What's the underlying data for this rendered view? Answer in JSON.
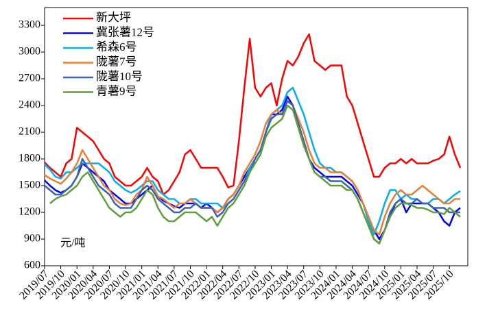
{
  "chart_data": {
    "type": "line",
    "y_unit": "元/吨",
    "categories": [
      "2019/07",
      null,
      null,
      "2019/10",
      null,
      null,
      "2020/01",
      null,
      null,
      "2020/04",
      null,
      null,
      "2020/07",
      null,
      null,
      "2020/10",
      null,
      null,
      "2021/01",
      null,
      null,
      "2021/04",
      null,
      null,
      "2021/07",
      null,
      null,
      "2021/10",
      null,
      null,
      "2022/01",
      null,
      null,
      "2022/04",
      null,
      null,
      "2022/07",
      null,
      null,
      "2022/10",
      null,
      null,
      "2023/01",
      null,
      null,
      "2023/04",
      null,
      null,
      "2023/07",
      null,
      null,
      "2023/10",
      null,
      null,
      "2024/01",
      null,
      null,
      "2024/04",
      null,
      null,
      "2024/07",
      null,
      null,
      "2024/10",
      null,
      null,
      "2025/01",
      null,
      null,
      "2025/04",
      null,
      null,
      "2025/07",
      null,
      null,
      "2025/10",
      null,
      null
    ],
    "series": [
      {
        "name": "新大坪",
        "color": "#ff0000",
        "values": [
          1760,
          1700,
          1650,
          1600,
          1750,
          1800,
          2150,
          2100,
          2050,
          2000,
          1900,
          1800,
          1750,
          1600,
          1550,
          1500,
          1500,
          1550,
          1600,
          1700,
          1600,
          1550,
          1400,
          1450,
          1550,
          1650,
          1850,
          1900,
          1800,
          1700,
          1700,
          1700,
          1700,
          1600,
          1480,
          1500,
          2000,
          2600,
          3150,
          2600,
          2500,
          2600,
          2650,
          2400,
          2700,
          2900,
          2850,
          2950,
          3100,
          3200,
          2900,
          2850,
          2800,
          2850,
          2850,
          2850,
          2500,
          2400,
          2200,
          2000,
          1800,
          1600,
          1600,
          1700,
          1750,
          1750,
          1800,
          1750,
          1800,
          1750,
          1750,
          1750,
          1780,
          1800,
          1850,
          2050,
          1850,
          1700
        ]
      },
      {
        "name": "冀张薯12号",
        "color": "#0000ff",
        "values": [
          1560,
          1500,
          1450,
          1420,
          1450,
          1500,
          1600,
          1750,
          1700,
          1650,
          1600,
          1550,
          1450,
          1400,
          1350,
          1300,
          1300,
          1350,
          1400,
          1450,
          1500,
          1380,
          1330,
          1300,
          1270,
          1250,
          1300,
          1300,
          1300,
          1250,
          1300,
          1250,
          1200,
          1250,
          1350,
          1400,
          1500,
          1600,
          1700,
          1800,
          1900,
          2100,
          2300,
          2300,
          2350,
          2500,
          2400,
          2200,
          2000,
          1800,
          1700,
          1650,
          1600,
          1600,
          1600,
          1600,
          1550,
          1500,
          1400,
          1300,
          1150,
          1000,
          900,
          1000,
          1150,
          1300,
          1350,
          1200,
          1300,
          1300,
          1300,
          1300,
          1250,
          1200,
          1100,
          1050,
          1200,
          1250
        ]
      },
      {
        "name": "希森6号",
        "color": "#00b0f0",
        "values": [
          1740,
          1680,
          1600,
          1580,
          1650,
          1650,
          1700,
          1750,
          1750,
          1750,
          1750,
          1700,
          1650,
          1550,
          1500,
          1450,
          1420,
          1450,
          1500,
          1550,
          1550,
          1450,
          1400,
          1350,
          1350,
          1300,
          1300,
          1350,
          1350,
          1300,
          1300,
          1300,
          1300,
          1250,
          1300,
          1350,
          1450,
          1550,
          1700,
          1800,
          1900,
          2100,
          2300,
          2350,
          2400,
          2550,
          2600,
          2450,
          2300,
          2100,
          1900,
          1750,
          1700,
          1700,
          1650,
          1650,
          1600,
          1550,
          1450,
          1300,
          1100,
          950,
          1100,
          1300,
          1450,
          1450,
          1350,
          1400,
          1350,
          1350,
          1300,
          1300,
          1350,
          1350,
          1300,
          1350,
          1400,
          1440
        ]
      },
      {
        "name": "陇薯7号",
        "color": "#ed7d31",
        "values": [
          1620,
          1580,
          1550,
          1520,
          1580,
          1650,
          1750,
          1900,
          1800,
          1700,
          1600,
          1500,
          1450,
          1350,
          1300,
          1280,
          1300,
          1400,
          1450,
          1600,
          1500,
          1380,
          1350,
          1300,
          1250,
          1300,
          1300,
          1350,
          1300,
          1250,
          1250,
          1250,
          1200,
          1250,
          1350,
          1400,
          1500,
          1650,
          1750,
          1850,
          2000,
          2200,
          2300,
          2350,
          2300,
          2450,
          2400,
          2250,
          2100,
          1900,
          1750,
          1700,
          1700,
          1650,
          1650,
          1650,
          1600,
          1550,
          1450,
          1300,
          1150,
          1000,
          950,
          1150,
          1300,
          1400,
          1450,
          1400,
          1400,
          1450,
          1500,
          1450,
          1400,
          1350,
          1300,
          1300,
          1350,
          1350
        ]
      },
      {
        "name": "陇薯10号",
        "color": "#3d62b3",
        "values": [
          1500,
          1450,
          1400,
          1400,
          1450,
          1500,
          1600,
          1800,
          1700,
          1600,
          1500,
          1450,
          1400,
          1300,
          1250,
          1250,
          1250,
          1350,
          1450,
          1500,
          1450,
          1350,
          1300,
          1250,
          1200,
          1200,
          1250,
          1250,
          1300,
          1250,
          1250,
          1250,
          1150,
          1200,
          1300,
          1350,
          1450,
          1550,
          1650,
          1800,
          1900,
          2100,
          2250,
          2300,
          2300,
          2450,
          2400,
          2200,
          2000,
          1800,
          1650,
          1600,
          1600,
          1550,
          1550,
          1550,
          1500,
          1450,
          1350,
          1200,
          1050,
          900,
          850,
          1000,
          1200,
          1300,
          1350,
          1300,
          1300,
          1350,
          1300,
          1300,
          1250,
          1250,
          1250,
          1200,
          1200,
          1200
        ]
      },
      {
        "name": "青薯9号",
        "color": "#5f9e3a",
        "values": [
          null,
          1300,
          1350,
          1380,
          1400,
          1450,
          1500,
          1600,
          1650,
          1550,
          1450,
          1350,
          1250,
          1200,
          1150,
          1200,
          1200,
          1250,
          1350,
          1450,
          1400,
          1250,
          1150,
          1100,
          1100,
          1150,
          1200,
          1200,
          1200,
          1150,
          1100,
          1150,
          1050,
          1150,
          1250,
          1300,
          1400,
          1500,
          1650,
          1750,
          1850,
          2050,
          2150,
          2200,
          2250,
          2400,
          2350,
          2150,
          1950,
          1800,
          1650,
          1600,
          1550,
          1500,
          1500,
          1500,
          1450,
          1450,
          1350,
          1200,
          1050,
          900,
          850,
          1000,
          1150,
          1250,
          1300,
          1300,
          1280,
          1250,
          1250,
          1230,
          1200,
          1200,
          1180,
          1250,
          1200,
          1150
        ]
      }
    ],
    "ylim": [
      600,
      3500
    ],
    "yticks": [
      600,
      900,
      1200,
      1500,
      1800,
      2100,
      2400,
      2700,
      3000,
      3300
    ],
    "grid": false,
    "legend": "top-left"
  }
}
